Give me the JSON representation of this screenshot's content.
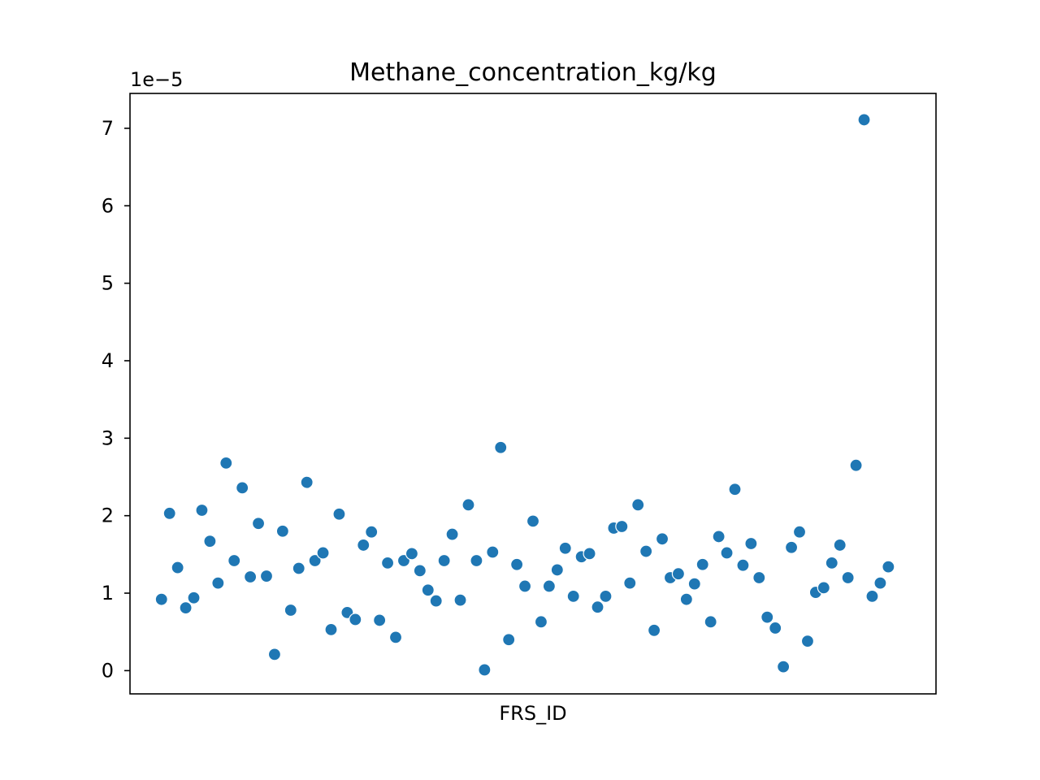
{
  "chart_data": {
    "type": "scatter",
    "title": "Methane_concentration_kg/kg",
    "xlabel": "FRS_ID",
    "ylabel": "",
    "y_offset_label": "1e−5",
    "y_scale": 1e-05,
    "xlim": [
      -3.9,
      95.9
    ],
    "ylim": [
      -3e-06,
      7.45e-05
    ],
    "y_ticks": [
      0,
      1e-05,
      2e-05,
      3e-05,
      4e-05,
      5e-05,
      6e-05,
      7e-05
    ],
    "y_tick_labels": [
      "0",
      "1",
      "2",
      "3",
      "4",
      "5",
      "6",
      "7"
    ],
    "x_ticks_shown": false,
    "grid": false,
    "marker_color": "#1f77b4",
    "marker_edge_color": "#ffffff",
    "x": [
      0,
      1,
      2,
      3,
      4,
      5,
      6,
      7,
      8,
      9,
      10,
      11,
      12,
      13,
      14,
      15,
      16,
      17,
      18,
      19,
      20,
      21,
      22,
      23,
      24,
      25,
      26,
      27,
      28,
      29,
      30,
      31,
      32,
      33,
      34,
      35,
      36,
      37,
      38,
      39,
      40,
      41,
      42,
      43,
      44,
      45,
      46,
      47,
      48,
      49,
      50,
      51,
      52,
      53,
      54,
      55,
      56,
      57,
      58,
      59,
      60,
      61,
      62,
      63,
      64,
      65,
      66,
      67,
      68,
      69,
      70,
      71,
      72,
      73,
      74,
      75,
      76,
      77,
      78,
      79,
      80,
      81,
      82,
      83,
      84,
      85,
      86,
      87,
      88,
      89,
      90
    ],
    "y": [
      9.2e-06,
      2.03e-05,
      1.33e-05,
      8.1e-06,
      9.4e-06,
      2.07e-05,
      1.67e-05,
      1.13e-05,
      2.68e-05,
      1.42e-05,
      2.36e-05,
      1.21e-05,
      1.9e-05,
      1.22e-05,
      2.1e-06,
      1.8e-05,
      7.8e-06,
      1.32e-05,
      2.43e-05,
      1.42e-05,
      1.52e-05,
      5.3e-06,
      2.02e-05,
      7.5e-06,
      6.6e-06,
      1.62e-05,
      1.79e-05,
      6.5e-06,
      1.39e-05,
      4.3e-06,
      1.42e-05,
      1.51e-05,
      1.29e-05,
      1.04e-05,
      9e-06,
      1.42e-05,
      1.76e-05,
      9.1e-06,
      2.14e-05,
      1.42e-05,
      1e-07,
      1.53e-05,
      2.88e-05,
      4e-06,
      1.37e-05,
      1.09e-05,
      1.93e-05,
      6.3e-06,
      1.09e-05,
      1.3e-05,
      1.58e-05,
      9.6e-06,
      1.47e-05,
      1.51e-05,
      8.2e-06,
      9.6e-06,
      1.84e-05,
      1.86e-05,
      1.13e-05,
      2.14e-05,
      1.54e-05,
      5.2e-06,
      1.7e-05,
      1.2e-05,
      1.25e-05,
      9.2e-06,
      1.12e-05,
      1.37e-05,
      6.3e-06,
      1.73e-05,
      1.52e-05,
      2.34e-05,
      1.36e-05,
      1.64e-05,
      1.2e-05,
      6.9e-06,
      5.5e-06,
      5e-07,
      1.59e-05,
      1.79e-05,
      3.8e-06,
      1.01e-05,
      1.07e-05,
      1.39e-05,
      1.62e-05,
      1.2e-05,
      2.65e-05,
      7.11e-05,
      9.6e-06,
      1.13e-05,
      1.34e-05
    ]
  }
}
